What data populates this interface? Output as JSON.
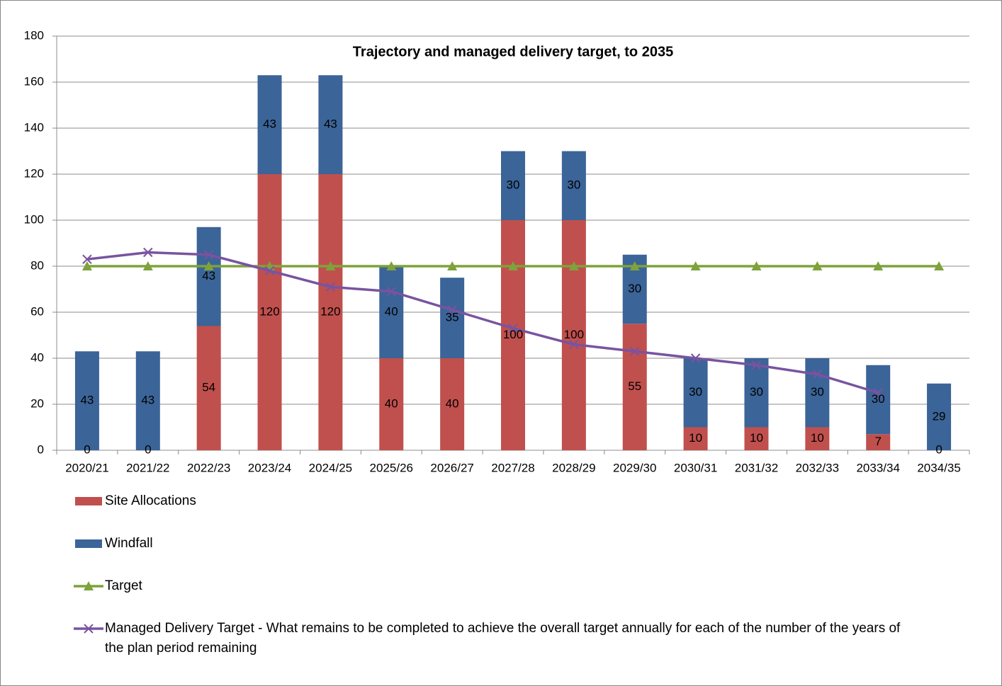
{
  "chart_data": {
    "type": "bar",
    "stacked": true,
    "title": "Trajectory and managed delivery target, to 2035",
    "categories": [
      "2020/21",
      "2021/22",
      "2022/23",
      "2023/24",
      "2024/25",
      "2025/26",
      "2026/27",
      "2027/28",
      "2028/29",
      "2029/30",
      "2030/31",
      "2031/32",
      "2032/33",
      "2033/34",
      "2034/35"
    ],
    "series": [
      {
        "name": "Site Allocations",
        "type": "bar",
        "color": "#c0504d",
        "values": [
          0,
          0,
          54,
          120,
          120,
          40,
          40,
          100,
          100,
          55,
          10,
          10,
          10,
          7,
          0
        ]
      },
      {
        "name": "Windfall",
        "type": "bar",
        "color": "#3b6498",
        "values": [
          43,
          43,
          43,
          43,
          43,
          40,
          35,
          30,
          30,
          30,
          30,
          30,
          30,
          30,
          29
        ]
      },
      {
        "name": "Target",
        "type": "line",
        "marker": "triangle",
        "color": "#7ea23c",
        "values": [
          80,
          80,
          80,
          80,
          80,
          80,
          80,
          80,
          80,
          80,
          80,
          80,
          80,
          80,
          80
        ]
      },
      {
        "name": "Managed Delivery Target - What remains to be completed to achieve the overall target annually for each of the number of the years of the plan period remaining",
        "type": "line",
        "marker": "x",
        "color": "#7953a0",
        "values": [
          83,
          86,
          85,
          78,
          71,
          69,
          61,
          53,
          46,
          43,
          40,
          37,
          33,
          25,
          null
        ]
      }
    ],
    "data_labels": true,
    "ylim": [
      0,
      180
    ],
    "yticks": [
      0,
      20,
      40,
      60,
      80,
      100,
      120,
      140,
      160,
      180
    ],
    "grid": true,
    "legend": "bottom"
  }
}
